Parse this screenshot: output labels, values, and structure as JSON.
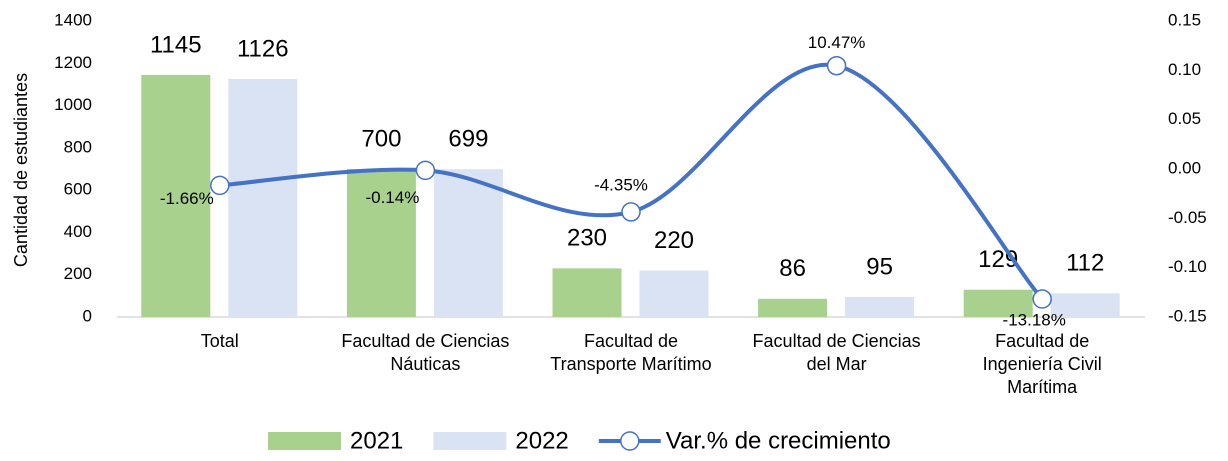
{
  "chart_data": {
    "type": "bar_line",
    "categories": [
      "Total",
      "Facultad de Ciencias\nNáuticas",
      "Facultad de\nTransporte Marítimo",
      "Facultad de Ciencias\ndel Mar",
      "Facultad de\nIngeniería Civil\nMarítima"
    ],
    "series": [
      {
        "name": "2021",
        "type": "bar",
        "color": "#a9d18e",
        "values": [
          1145,
          700,
          230,
          86,
          129
        ]
      },
      {
        "name": "2022",
        "type": "bar",
        "color": "#dae3f3",
        "values": [
          1126,
          699,
          220,
          95,
          112
        ]
      },
      {
        "name": "Var.% de crecimiento",
        "type": "line",
        "axis": "y2",
        "color": "#4472c4",
        "values": [
          -0.0166,
          -0.0014,
          -0.0435,
          0.1047,
          -0.1318
        ],
        "value_labels": [
          "-1.66%",
          "-0.14%",
          "-4.35%",
          "10.47%",
          "-13.18%"
        ]
      }
    ],
    "ylabel": "Cantidad de estudiantes",
    "ylim": [
      0,
      1400
    ],
    "yticks": [
      0,
      200,
      400,
      600,
      800,
      1000,
      1200,
      1400
    ],
    "y2lim": [
      -0.15,
      0.15
    ],
    "y2ticks": [
      -0.15,
      {
        "value": -0.1,
        "label": "-0.10"
      },
      -0.05,
      {
        "value": 0,
        "label": "0.00"
      },
      0.05,
      {
        "value": 0.1,
        "label": "0.10"
      },
      0.15
    ],
    "legend": "bottom"
  }
}
